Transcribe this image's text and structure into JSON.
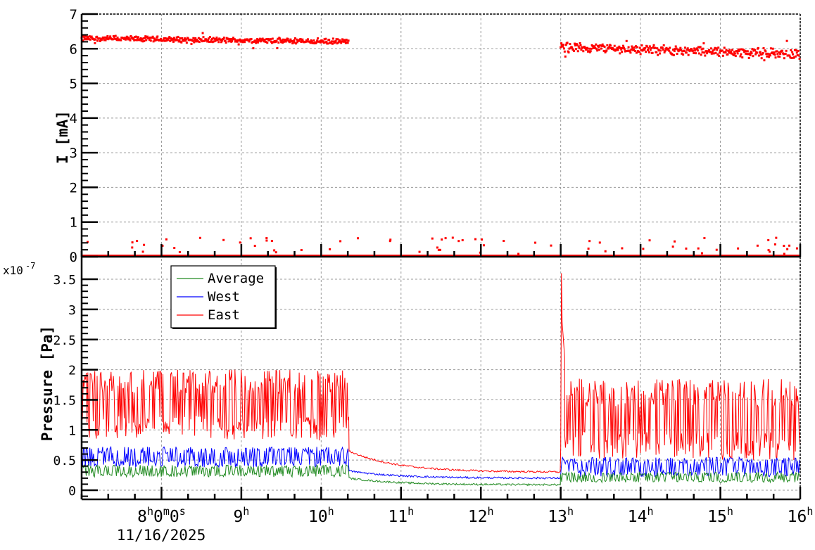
{
  "chart_data": [
    {
      "type": "scatter",
      "panel": "top",
      "title": "",
      "ylabel": "I [mA]",
      "xlabel": "",
      "ylim": [
        0,
        7
      ],
      "yticks": [
        "0",
        "1",
        "2",
        "3",
        "4",
        "5",
        "6",
        "7"
      ],
      "grid": true,
      "series": [
        {
          "name": "I",
          "color": "#ff0000",
          "segments": [
            {
              "x_start_h": 7.0,
              "x_end_h": 10.35,
              "level_start": 6.3,
              "level_end": 6.2,
              "spread": 0.06,
              "note": "beam current ~6.2-6.35 mA"
            },
            {
              "x_start_h": 13.0,
              "x_end_h": 16.0,
              "level_start": 6.05,
              "level_end": 5.85,
              "spread": 0.1,
              "note": "beam current ~5.8-6.1 mA"
            }
          ],
          "baseline": {
            "x_start_h": 7.0,
            "x_end_h": 16.0,
            "level": 0.02,
            "outliers_max": 0.55
          }
        }
      ]
    },
    {
      "type": "line",
      "panel": "bottom",
      "title": "",
      "ylabel": "Pressure [Pa]",
      "xlabel": "",
      "y_multiplier": "x10^-7",
      "ylim": [
        0,
        3.6
      ],
      "yticks": [
        "0",
        "0.5",
        "1",
        "1.5",
        "2",
        "2.5",
        "3",
        "3.5"
      ],
      "grid": true,
      "legend": {
        "position": "upper-left",
        "entries": [
          "Average",
          "West",
          "East"
        ]
      },
      "series": [
        {
          "name": "Average",
          "color": "#228b22",
          "phases": [
            {
              "x_start_h": 7.0,
              "x_end_h": 10.35,
              "low": 0.22,
              "high": 0.42
            },
            {
              "x_start_h": 10.35,
              "x_end_h": 13.0,
              "decay_from": 0.2,
              "decay_to": 0.09
            },
            {
              "x_start_h": 13.0,
              "x_end_h": 16.0,
              "low": 0.13,
              "high": 0.3
            }
          ]
        },
        {
          "name": "West",
          "color": "#0000ff",
          "phases": [
            {
              "x_start_h": 7.0,
              "x_end_h": 10.35,
              "low": 0.38,
              "high": 0.72
            },
            {
              "x_start_h": 10.35,
              "x_end_h": 13.0,
              "decay_from": 0.32,
              "decay_to": 0.2
            },
            {
              "x_start_h": 13.0,
              "x_end_h": 16.0,
              "low": 0.22,
              "high": 0.55
            }
          ]
        },
        {
          "name": "East",
          "color": "#ff0000",
          "phases": [
            {
              "x_start_h": 7.0,
              "x_end_h": 10.35,
              "low": 0.82,
              "high": 2.0
            },
            {
              "x_start_h": 10.35,
              "x_end_h": 13.0,
              "decay_from": 0.65,
              "decay_to": 0.3
            },
            {
              "x_start_h": 13.0,
              "x_end_h": 13.05,
              "spike": 3.6
            },
            {
              "x_start_h": 13.05,
              "x_end_h": 16.0,
              "low": 0.5,
              "high": 1.85
            }
          ]
        }
      ]
    }
  ],
  "x_axis": {
    "range_h": [
      7.0,
      16.0
    ],
    "ticks": [
      {
        "h": 8,
        "base": "8",
        "sup": "h",
        "extra": [
          [
            "0",
            "m"
          ],
          [
            "0",
            "s"
          ]
        ]
      },
      {
        "h": 9,
        "base": "9",
        "sup": "h"
      },
      {
        "h": 10,
        "base": "10",
        "sup": "h"
      },
      {
        "h": 11,
        "base": "11",
        "sup": "h"
      },
      {
        "h": 12,
        "base": "12",
        "sup": "h"
      },
      {
        "h": 13,
        "base": "13",
        "sup": "h"
      },
      {
        "h": 14,
        "base": "14",
        "sup": "h"
      },
      {
        "h": 15,
        "base": "15",
        "sup": "h"
      },
      {
        "h": 16,
        "base": "16",
        "sup": "h"
      }
    ],
    "date_label": "11/16/2025"
  },
  "labels": {
    "top_ylabel": "I [mA]",
    "bottom_ylabel": "Pressure [Pa]",
    "exponent_base": "x10",
    "exponent_power": "-7",
    "legend_average": "Average",
    "legend_west": "West",
    "legend_east": "East",
    "date": "11/16/2025"
  },
  "colors": {
    "average": "#228b22",
    "west": "#0000ff",
    "east": "#ff0000",
    "current": "#ff0000",
    "grid": "#999999",
    "axis": "#000000"
  }
}
